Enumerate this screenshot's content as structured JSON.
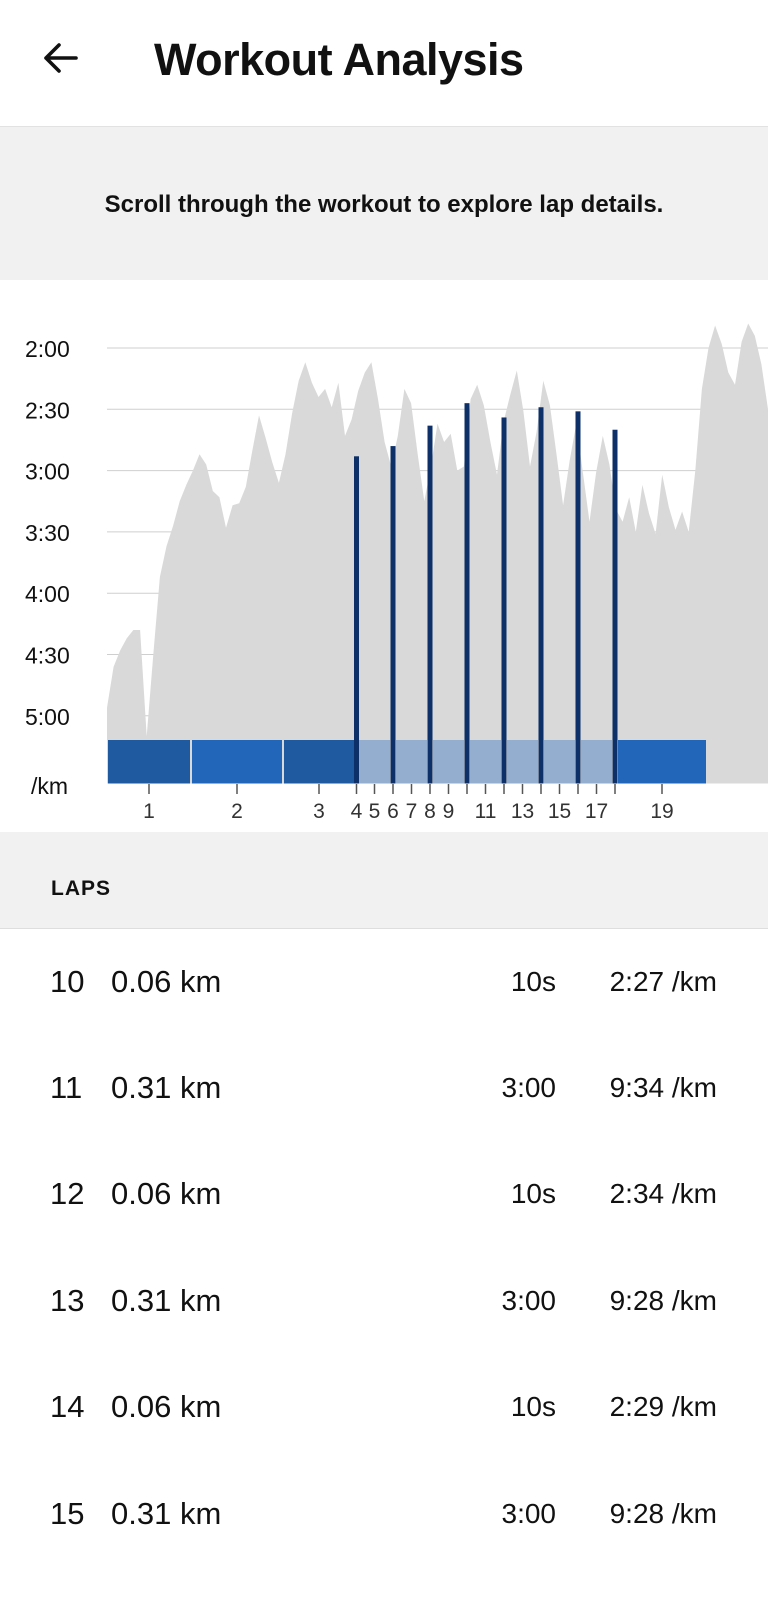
{
  "header": {
    "title": "Workout Analysis",
    "back_icon": "arrow-left-icon"
  },
  "banner": {
    "text": "Scroll through the workout to explore lap details."
  },
  "chart_data": {
    "type": "area",
    "y_unit_label": "/km",
    "y_ticks": [
      "2:00",
      "2:30",
      "3:00",
      "3:30",
      "4:00",
      "4:30",
      "5:00"
    ],
    "y_tick_seconds": [
      120,
      150,
      180,
      210,
      240,
      270,
      300
    ],
    "y_axis_inverted": true,
    "x_tick_labels": [
      "1",
      "2",
      "3",
      "4",
      "5",
      "6",
      "7",
      "8",
      "9",
      "11",
      "13",
      "15",
      "17",
      "19"
    ],
    "grid": true,
    "colors": {
      "area": "#d9d9d9",
      "lap_fast": "#1f5aa0",
      "lap_mid": "#2166b8",
      "lap_rest": "#94aed0",
      "split_marker": "#0d3068"
    },
    "laps": [
      {
        "lap": 1,
        "kind": "fast"
      },
      {
        "lap": 2,
        "kind": "mid"
      },
      {
        "lap": 3,
        "kind": "fast"
      },
      {
        "lap": 4,
        "kind": "interval"
      },
      {
        "lap": 5,
        "kind": "rest"
      },
      {
        "lap": 6,
        "kind": "interval"
      },
      {
        "lap": 7,
        "kind": "rest"
      },
      {
        "lap": 8,
        "kind": "interval"
      },
      {
        "lap": 9,
        "kind": "rest"
      },
      {
        "lap": 10,
        "kind": "interval"
      },
      {
        "lap": 11,
        "kind": "rest"
      },
      {
        "lap": 12,
        "kind": "interval"
      },
      {
        "lap": 13,
        "kind": "rest"
      },
      {
        "lap": 14,
        "kind": "interval"
      },
      {
        "lap": 15,
        "kind": "rest"
      },
      {
        "lap": 16,
        "kind": "interval"
      },
      {
        "lap": 17,
        "kind": "rest"
      },
      {
        "lap": 18,
        "kind": "interval"
      },
      {
        "lap": 19,
        "kind": "mid"
      }
    ],
    "interval_paces_seconds": [
      {
        "lap": 4,
        "pace_s": 173
      },
      {
        "lap": 6,
        "pace_s": 168
      },
      {
        "lap": 8,
        "pace_s": 158
      },
      {
        "lap": 10,
        "pace_s": 147
      },
      {
        "lap": 12,
        "pace_s": 154
      },
      {
        "lap": 14,
        "pace_s": 149
      },
      {
        "lap": 16,
        "pace_s": 151
      },
      {
        "lap": 18,
        "pace_s": 160
      }
    ],
    "pace_profile_seconds": [
      {
        "t": 0,
        "pace": 296
      },
      {
        "t": 1,
        "pace": 276
      },
      {
        "t": 2,
        "pace": 268
      },
      {
        "t": 3,
        "pace": 262
      },
      {
        "t": 4,
        "pace": 258
      },
      {
        "t": 5,
        "pace": 258
      },
      {
        "t": 6,
        "pace": 310
      },
      {
        "t": 7,
        "pace": 270
      },
      {
        "t": 8,
        "pace": 232
      },
      {
        "t": 9,
        "pace": 217
      },
      {
        "t": 10,
        "pace": 207
      },
      {
        "t": 11,
        "pace": 195
      },
      {
        "t": 12,
        "pace": 187
      },
      {
        "t": 13,
        "pace": 180
      },
      {
        "t": 14,
        "pace": 172
      },
      {
        "t": 15,
        "pace": 177
      },
      {
        "t": 16,
        "pace": 190
      },
      {
        "t": 17,
        "pace": 193
      },
      {
        "t": 18,
        "pace": 208
      },
      {
        "t": 19,
        "pace": 197
      },
      {
        "t": 20,
        "pace": 196
      },
      {
        "t": 21,
        "pace": 188
      },
      {
        "t": 22,
        "pace": 170
      },
      {
        "t": 23,
        "pace": 153
      },
      {
        "t": 24,
        "pace": 164
      },
      {
        "t": 25,
        "pace": 176
      },
      {
        "t": 26,
        "pace": 186
      },
      {
        "t": 27,
        "pace": 172
      },
      {
        "t": 28,
        "pace": 152
      },
      {
        "t": 29,
        "pace": 136
      },
      {
        "t": 30,
        "pace": 127
      },
      {
        "t": 31,
        "pace": 137
      },
      {
        "t": 32,
        "pace": 144
      },
      {
        "t": 33,
        "pace": 140
      },
      {
        "t": 34,
        "pace": 149
      },
      {
        "t": 35,
        "pace": 137
      },
      {
        "t": 36,
        "pace": 163
      },
      {
        "t": 37,
        "pace": 155
      },
      {
        "t": 38,
        "pace": 141
      },
      {
        "t": 39,
        "pace": 132
      },
      {
        "t": 40,
        "pace": 127
      },
      {
        "t": 41,
        "pace": 145
      },
      {
        "t": 42,
        "pace": 166
      },
      {
        "t": 43,
        "pace": 178
      },
      {
        "t": 44,
        "pace": 163
      },
      {
        "t": 45,
        "pace": 140
      },
      {
        "t": 46,
        "pace": 147
      },
      {
        "t": 47,
        "pace": 172
      },
      {
        "t": 48,
        "pace": 195
      },
      {
        "t": 49,
        "pace": 178
      },
      {
        "t": 50,
        "pace": 157
      },
      {
        "t": 51,
        "pace": 166
      },
      {
        "t": 52,
        "pace": 162
      },
      {
        "t": 53,
        "pace": 180
      },
      {
        "t": 54,
        "pace": 178
      },
      {
        "t": 55,
        "pace": 145
      },
      {
        "t": 56,
        "pace": 138
      },
      {
        "t": 57,
        "pace": 148
      },
      {
        "t": 58,
        "pace": 166
      },
      {
        "t": 59,
        "pace": 182
      },
      {
        "t": 60,
        "pace": 156
      },
      {
        "t": 61,
        "pace": 143
      },
      {
        "t": 62,
        "pace": 131
      },
      {
        "t": 63,
        "pace": 151
      },
      {
        "t": 64,
        "pace": 178
      },
      {
        "t": 65,
        "pace": 161
      },
      {
        "t": 66,
        "pace": 136
      },
      {
        "t": 67,
        "pace": 148
      },
      {
        "t": 68,
        "pace": 172
      },
      {
        "t": 69,
        "pace": 197
      },
      {
        "t": 70,
        "pace": 175
      },
      {
        "t": 71,
        "pace": 157
      },
      {
        "t": 72,
        "pace": 181
      },
      {
        "t": 73,
        "pace": 205
      },
      {
        "t": 74,
        "pace": 181
      },
      {
        "t": 75,
        "pace": 163
      },
      {
        "t": 76,
        "pace": 177
      },
      {
        "t": 77,
        "pace": 199
      },
      {
        "t": 78,
        "pace": 205
      },
      {
        "t": 79,
        "pace": 193
      },
      {
        "t": 80,
        "pace": 210
      },
      {
        "t": 81,
        "pace": 187
      },
      {
        "t": 82,
        "pace": 201
      },
      {
        "t": 83,
        "pace": 211
      },
      {
        "t": 84,
        "pace": 182
      },
      {
        "t": 85,
        "pace": 198
      },
      {
        "t": 86,
        "pace": 209
      },
      {
        "t": 87,
        "pace": 200
      },
      {
        "t": 88,
        "pace": 210
      },
      {
        "t": 89,
        "pace": 180
      },
      {
        "t": 90,
        "pace": 140
      },
      {
        "t": 91,
        "pace": 120
      },
      {
        "t": 92,
        "pace": 109
      },
      {
        "t": 93,
        "pace": 118
      },
      {
        "t": 94,
        "pace": 132
      },
      {
        "t": 95,
        "pace": 138
      },
      {
        "t": 96,
        "pace": 117
      },
      {
        "t": 97,
        "pace": 108
      },
      {
        "t": 98,
        "pace": 114
      },
      {
        "t": 99,
        "pace": 128
      },
      {
        "t": 100,
        "pace": 150
      }
    ]
  },
  "laps_section": {
    "title": "LAPS",
    "rows": [
      {
        "lap": "10",
        "distance": "0.06 km",
        "time": "10s",
        "pace": "2:27 /km"
      },
      {
        "lap": "11",
        "distance": "0.31 km",
        "time": "3:00",
        "pace": "9:34 /km"
      },
      {
        "lap": "12",
        "distance": "0.06 km",
        "time": "10s",
        "pace": "2:34 /km"
      },
      {
        "lap": "13",
        "distance": "0.31 km",
        "time": "3:00",
        "pace": "9:28 /km"
      },
      {
        "lap": "14",
        "distance": "0.06 km",
        "time": "10s",
        "pace": "2:29 /km"
      },
      {
        "lap": "15",
        "distance": "0.31 km",
        "time": "3:00",
        "pace": "9:28 /km"
      }
    ]
  }
}
